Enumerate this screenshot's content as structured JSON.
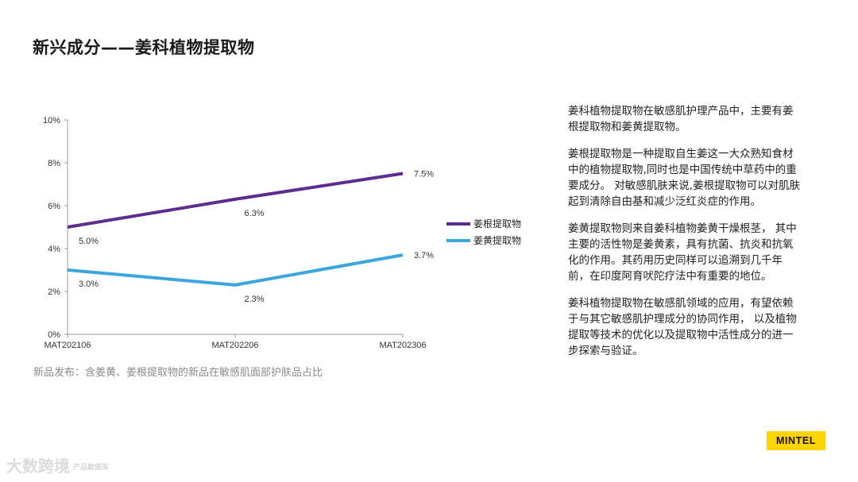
{
  "page": {
    "title": "新兴成分——姜科植物提取物",
    "caption": "新品发布：含姜黄、姜根提取物的新品在敏感肌面部护肤品占比",
    "paragraphs": [
      "姜科植物提取物在敏感肌护理产品中，主要有姜根提取物和姜黄提取物。",
      "姜根提取物是一种提取自生姜这一大众熟知食材中的植物提取物,同时也是中国传统中草药中的重要成分。 对敏感肌肤来说,姜根提取物可以对肌肤起到清除自由基和减少泛红炎症的作用。",
      "姜黄提取物则来自姜科植物姜黄干燥根茎， 其中主要的活性物是姜黄素，具有抗菌、抗炎和抗氧化的作用。其药用历史同样可以追溯到几千年前，在印度阿育吠陀疗法中有重要的地位。",
      "姜科植物提取物在敏感肌领域的应用，有望依赖于与其它敏感肌护理成分的协同作用， 以及植物提取等技术的优化以及提取物中活性成分的进一步探索与验证。"
    ],
    "logo": "MINTEL",
    "watermark": "大数跨境",
    "source_note": "产品数据库"
  },
  "chart_data": {
    "type": "line",
    "categories": [
      "MAT202106",
      "MAT202206",
      "MAT202306"
    ],
    "ylim": [
      0,
      10
    ],
    "yticks": [
      "0%",
      "2%",
      "4%",
      "6%",
      "8%",
      "10%"
    ],
    "ytick_values": [
      0,
      2,
      4,
      6,
      8,
      10
    ],
    "grid": false,
    "legend_position": "right",
    "series": [
      {
        "name": "姜根提取物",
        "values": [
          5.0,
          6.3,
          7.5
        ],
        "labels": [
          "5.0%",
          "6.3%",
          "7.5%"
        ],
        "color": "#5b2d8e"
      },
      {
        "name": "姜黄提取物",
        "values": [
          3.0,
          2.3,
          3.7
        ],
        "labels": [
          "3.0%",
          "2.3%",
          "3.7%"
        ],
        "color": "#3aa6dd"
      }
    ]
  }
}
